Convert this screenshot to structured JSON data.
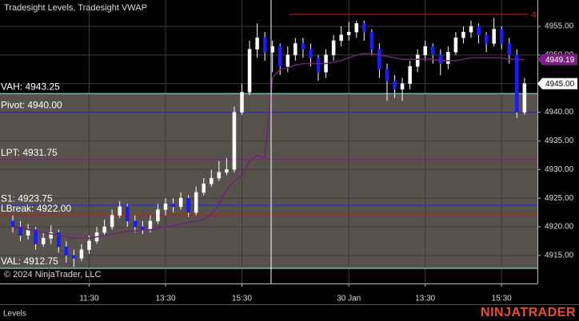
{
  "chart_data": {
    "type": "candlestick",
    "title": "Tradesight Levels, Tradesight VWAP",
    "copyright": "© 2024 NinjaTrader, LLC",
    "panel_label": "Levels",
    "brand": "NINJATRADER",
    "categories": [
      null,
      null,
      null,
      null,
      null,
      null,
      null,
      null,
      null,
      null,
      "11:30",
      null,
      null,
      null,
      null,
      null,
      null,
      null,
      null,
      null,
      "13:30",
      null,
      null,
      null,
      null,
      null,
      null,
      null,
      null,
      null,
      "15:30",
      null,
      null,
      null,
      null,
      null,
      null,
      null,
      null,
      null,
      null,
      null,
      null,
      null,
      "30 Jan",
      null,
      null,
      null,
      null,
      null,
      null,
      null,
      null,
      null,
      "13:30",
      null,
      null,
      null,
      null,
      null,
      null,
      null,
      null,
      null,
      "15:30",
      null,
      null,
      null
    ],
    "open": [
      4921,
      4920,
      4918.5,
      4919.5,
      4917,
      4918,
      4919,
      4916.5,
      4915,
      4914.5,
      4916,
      4917.5,
      4919,
      4920,
      4922,
      4923.5,
      4921,
      4920,
      4919.5,
      4921,
      4923,
      4924,
      4923.5,
      4925,
      4922.5,
      4926,
      4927.5,
      4928.5,
      4929.5,
      4930,
      4940,
      4943.5,
      4951,
      4953,
      4950.5,
      4951.5,
      4948,
      4950,
      4952,
      4951,
      4949.5,
      4947,
      4950,
      4952.5,
      4953.5,
      4954,
      4955.5,
      4954,
      4951,
      4947.5,
      4945.5,
      4944,
      4945,
      4948,
      4950,
      4951.5,
      4950,
      4948.5,
      4950.5,
      4953,
      4954,
      4955,
      4953.5,
      4952,
      4954.5,
      4952,
      4950,
      4940
    ],
    "high": [
      4922,
      4921,
      4920.5,
      4920,
      4919,
      4920.25,
      4919.5,
      4917.5,
      4916,
      4917,
      4918.5,
      4920,
      4921.25,
      4923,
      4924.5,
      4924,
      4922,
      4921,
      4922,
      4924,
      4925,
      4925,
      4926,
      4925.5,
      4927,
      4928.5,
      4930,
      4931.5,
      4932,
      4941,
      4945,
      4952.5,
      4955.5,
      4954,
      4952.5,
      4952,
      4951.5,
      4953,
      4953,
      4952,
      4950,
      4951,
      4953.5,
      4955,
      4955.75,
      4956,
      4956,
      4954.5,
      4952,
      4948.5,
      4946.5,
      4946,
      4949,
      4951,
      4952.5,
      4952,
      4951,
      4951.5,
      4954,
      4955,
      4956,
      4955.5,
      4954,
      4956.5,
      4955,
      4953,
      4951,
      4946
    ],
    "low": [
      4919,
      4917.5,
      4917.75,
      4916,
      4916.5,
      4917,
      4915.5,
      4913.75,
      4913,
      4914,
      4915.25,
      4917,
      4918.5,
      4919.5,
      4921.5,
      4920,
      4919,
      4918.75,
      4919,
      4920.5,
      4922,
      4922.5,
      4923,
      4921.75,
      4922,
      4925.5,
      4927,
      4928,
      4929,
      4929.5,
      4939.5,
      4943,
      4949.5,
      4949,
      4947,
      4946.5,
      4947,
      4949,
      4949.5,
      4948,
      4945.5,
      4946,
      4949,
      4951.5,
      4952.5,
      4953,
      4952.5,
      4950,
      4946,
      4942,
      4942.5,
      4942,
      4944,
      4947,
      4949,
      4948.5,
      4946.5,
      4947.5,
      4950,
      4952,
      4953,
      4952,
      4950.5,
      4951.5,
      4951,
      4948.5,
      4939,
      4939.5
    ],
    "close": [
      4920,
      4918.5,
      4919.5,
      4917,
      4918,
      4919,
      4916.5,
      4915,
      4914.5,
      4916,
      4917.5,
      4919,
      4920,
      4922,
      4923.5,
      4921,
      4920,
      4919.5,
      4921,
      4923,
      4924,
      4923.5,
      4925,
      4922.5,
      4926,
      4927.5,
      4928.5,
      4929.5,
      4930,
      4940,
      4943.5,
      4951,
      4953,
      4950.5,
      4951.5,
      4948,
      4950,
      4952,
      4951,
      4949.5,
      4947,
      4950,
      4952.5,
      4953.5,
      4954,
      4955.5,
      4954,
      4951,
      4947.5,
      4945.5,
      4944,
      4945,
      4948,
      4950,
      4951.5,
      4950,
      4948.5,
      4950.5,
      4953,
      4954,
      4955,
      4953.5,
      4952,
      4954.5,
      4952,
      4950,
      4940,
      4945
    ],
    "up_color": "#ffffff",
    "down_color": "#1c1cff",
    "vwap": {
      "color": "#6e2373",
      "values": [
        4920,
        4919.75,
        4919.5,
        4919.25,
        4919,
        4918.75,
        4918.5,
        4918.25,
        4918,
        4918,
        4918,
        4918.25,
        4918.5,
        4918.75,
        4919,
        4919.25,
        4919.25,
        4919.5,
        4919.5,
        4919.75,
        4920,
        4920.25,
        4920.5,
        4920.75,
        4921,
        4921.25,
        4922.25,
        4924,
        4926.5,
        4928,
        4929,
        4931.5,
        4932.5,
        4932,
        4946,
        4947.5,
        4947.75,
        4948.25,
        4948.5,
        4948.5,
        4948.5,
        4948.5,
        4948.75,
        4949,
        4949.5,
        4950,
        4950.25,
        4950.25,
        4950,
        4949.75,
        4949.5,
        4949.25,
        4949.25,
        4949.25,
        4949.25,
        4949.25,
        4949,
        4949,
        4949,
        4949.25,
        4949.5,
        4949.5,
        4949.5,
        4949.5,
        4949.5,
        4949.25,
        4949.25,
        4949.19
      ]
    },
    "levels": [
      {
        "label": "VAH: 4943.25",
        "value": 4943.25,
        "color": "#7fd0c4"
      },
      {
        "label": "Pivot: 4940.00",
        "value": 4940,
        "color": "#2424c8"
      },
      {
        "label": "LPT: 4931.75",
        "value": 4931.75,
        "color": "#7a2080"
      },
      {
        "label": "S1: 4923.75",
        "value": 4923.75,
        "color": "#2a2ad8"
      },
      {
        "label": "LBreak: 4922.00",
        "value": 4922,
        "color": "#c41a1a"
      },
      {
        "label": "VAL: 4912.75",
        "value": 4912.75,
        "color": "#7fd0c4"
      }
    ],
    "value_area_color": "#57534c",
    "marker_line": {
      "label": "4",
      "value": 4957.1,
      "color": "#cc1111"
    },
    "price_tags": [
      {
        "value": 4949.19,
        "label": "4949.19",
        "color": "#7a2080",
        "text_color": "#ffffff"
      },
      {
        "value": 4945,
        "label": "4945.00",
        "color": "#ffffff",
        "text_color": "#000000"
      }
    ],
    "ylim": [
      4910.1,
      4959.6
    ],
    "yticks": [
      {
        "value": 4915,
        "label": "4915.00"
      },
      {
        "value": 4920,
        "label": "4920.00"
      },
      {
        "value": 4925,
        "label": "4925.00"
      },
      {
        "value": 4930,
        "label": "4930.00"
      },
      {
        "value": 4935,
        "label": "4935.00"
      },
      {
        "value": 4940,
        "label": "4940.00"
      },
      {
        "value": 4945,
        "label": "4945.00"
      },
      {
        "value": 4950,
        "label": "4950.00"
      },
      {
        "value": 4955,
        "label": "4955.00"
      }
    ],
    "grid": true
  }
}
